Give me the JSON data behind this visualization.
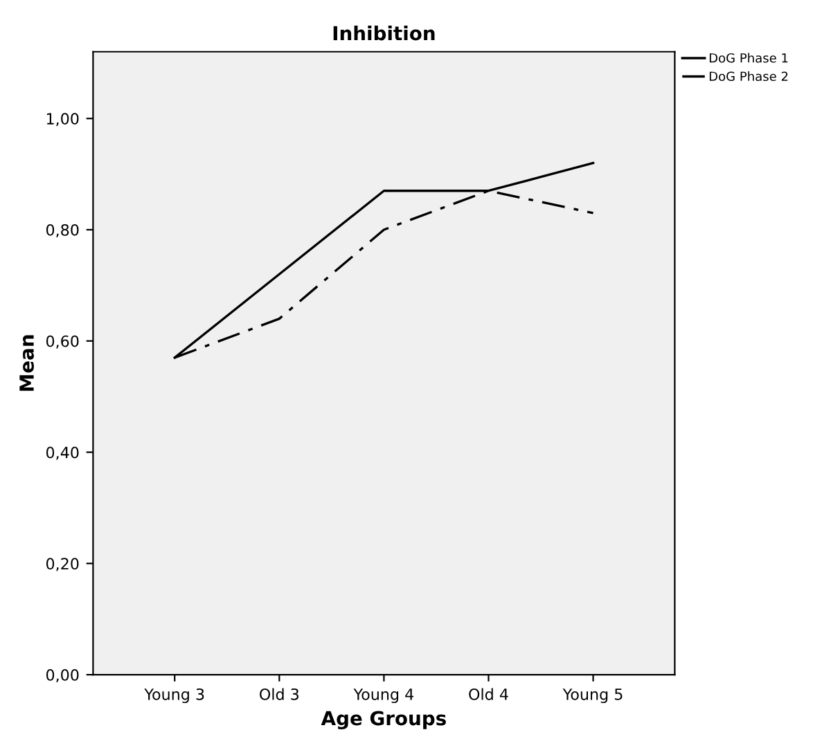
{
  "chart_data": {
    "type": "line",
    "title": "Inhibition",
    "xlabel": "Age Groups",
    "ylabel": "Mean",
    "categories": [
      "Young 3",
      "Old 3",
      "Young 4",
      "Old 4",
      "Young 5"
    ],
    "series": [
      {
        "name": "DoG Phase 1",
        "color": "#000000",
        "line_style": "solid",
        "values": [
          0.57,
          0.72,
          0.87,
          0.87,
          0.92
        ]
      },
      {
        "name": "DoG Phase 2",
        "color": "#000000",
        "line_style": "dashdot",
        "values": [
          0.57,
          0.64,
          0.8,
          0.87,
          0.83
        ]
      }
    ],
    "ylim": [
      0,
      1.12
    ],
    "yticks": [
      {
        "value": 0,
        "label": "0,00"
      },
      {
        "value": 0.2,
        "label": "0,20"
      },
      {
        "value": 0.4,
        "label": "0,40"
      },
      {
        "value": 0.6,
        "label": "0,60"
      },
      {
        "value": 0.8,
        "label": "0,80"
      },
      {
        "value": 1.0,
        "label": "1,00"
      }
    ],
    "grid": false,
    "legend": "top right",
    "marker": "none"
  }
}
